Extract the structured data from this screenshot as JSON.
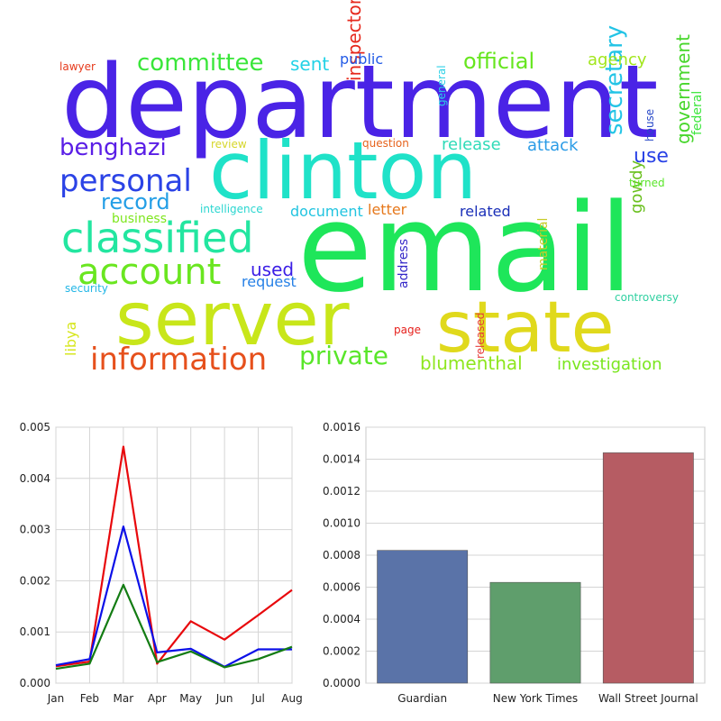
{
  "wordcloud": {
    "words": [
      {
        "text": "department",
        "color": "#4a23e6"
      },
      {
        "text": "email",
        "color": "#1ee65a"
      },
      {
        "text": "clinton",
        "color": "#1fe2c8"
      },
      {
        "text": "server",
        "color": "#c8e61a"
      },
      {
        "text": "state",
        "color": "#e0d91c"
      },
      {
        "text": "classified",
        "color": "#23e6a0"
      },
      {
        "text": "account",
        "color": "#6ae620"
      },
      {
        "text": "information",
        "color": "#e6501c"
      },
      {
        "text": "personal",
        "color": "#2b43e6"
      },
      {
        "text": "committee",
        "color": "#3ae63a"
      },
      {
        "text": "benghazi",
        "color": "#5a1ee6"
      },
      {
        "text": "record",
        "color": "#239ee6"
      },
      {
        "text": "private",
        "color": "#59e62a"
      },
      {
        "text": "official",
        "color": "#66e61e"
      },
      {
        "text": "secretary",
        "color": "#23c4e6"
      },
      {
        "text": "blumenthal",
        "color": "#8ee61e"
      },
      {
        "text": "investigation",
        "color": "#7ae61e"
      },
      {
        "text": "government",
        "color": "#46d62a"
      },
      {
        "text": "release",
        "color": "#2fdbb8"
      },
      {
        "text": "attack",
        "color": "#2a9be6"
      },
      {
        "text": "inspector",
        "color": "#e6281c"
      },
      {
        "text": "sent",
        "color": "#23d2e6"
      },
      {
        "text": "agency",
        "color": "#a2e61c"
      },
      {
        "text": "use",
        "color": "#2841e6"
      },
      {
        "text": "used",
        "color": "#3b1ee6"
      },
      {
        "text": "gowdy",
        "color": "#6ac01e"
      },
      {
        "text": "federal",
        "color": "#3ee63e"
      },
      {
        "text": "public",
        "color": "#235be6"
      },
      {
        "text": "related",
        "color": "#1a2fb8"
      },
      {
        "text": "document",
        "color": "#21c4e0"
      },
      {
        "text": "letter",
        "color": "#e6781c"
      },
      {
        "text": "request",
        "color": "#2680e6"
      },
      {
        "text": "libya",
        "color": "#d6e61c"
      },
      {
        "text": "material",
        "color": "#c8cc2a"
      },
      {
        "text": "address",
        "color": "#3428c8"
      },
      {
        "text": "business",
        "color": "#7ee61e"
      },
      {
        "text": "intelligence",
        "color": "#2ad6d0"
      },
      {
        "text": "question",
        "color": "#e6621c"
      },
      {
        "text": "review",
        "color": "#d6d62a"
      },
      {
        "text": "lawyer",
        "color": "#e63a1c"
      },
      {
        "text": "general",
        "color": "#2ad0e6"
      },
      {
        "text": "house",
        "color": "#2848c8"
      },
      {
        "text": "turned",
        "color": "#5ae62a"
      },
      {
        "text": "security",
        "color": "#23b6e6"
      },
      {
        "text": "controversy",
        "color": "#2fd0a0"
      },
      {
        "text": "page",
        "color": "#e6201c"
      },
      {
        "text": "released",
        "color": "#e63a3a"
      }
    ]
  },
  "chart_data": [
    {
      "type": "line",
      "x": [
        "Jan",
        "Feb",
        "Mar",
        "Apr",
        "May",
        "Jun",
        "Jul",
        "Aug"
      ],
      "ylim": [
        0,
        0.005
      ],
      "yticks": [
        "0.000",
        "0.001",
        "0.002",
        "0.003",
        "0.004",
        "0.005"
      ],
      "grid": true,
      "series": [
        {
          "color": "#e8080c",
          "values": [
            0.00033,
            0.00042,
            0.00462,
            0.00038,
            0.00121,
            0.00085,
            0.00133,
            0.00182
          ]
        },
        {
          "color": "#0c10e8",
          "values": [
            0.00035,
            0.00047,
            0.00306,
            0.0006,
            0.00067,
            0.00032,
            0.00066,
            0.00066
          ]
        },
        {
          "color": "#137c13",
          "values": [
            0.00028,
            0.00038,
            0.00192,
            0.00041,
            0.00062,
            0.00031,
            0.00047,
            0.00071
          ]
        }
      ]
    },
    {
      "type": "bar",
      "categories": [
        "Guardian",
        "New York Times",
        "Wall Street Journal"
      ],
      "values": [
        0.00083,
        0.00063,
        0.00144
      ],
      "colors": [
        "#5a73a8",
        "#5f9e6c",
        "#b65c63"
      ],
      "ylim": [
        0,
        0.0016
      ],
      "yticks": [
        "0.0000",
        "0.0002",
        "0.0004",
        "0.0006",
        "0.0008",
        "0.0010",
        "0.0012",
        "0.0014",
        "0.0016"
      ],
      "grid": true
    }
  ]
}
